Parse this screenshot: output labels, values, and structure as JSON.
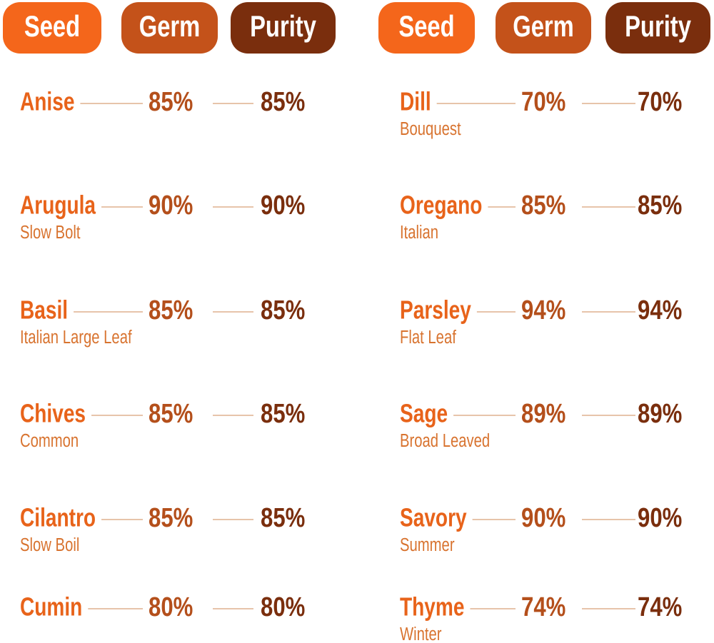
{
  "columns": [
    {
      "headers": [
        "Seed",
        "Germ",
        "Purity"
      ],
      "rows": [
        {
          "name": "Anise",
          "germ": "85%",
          "purity": "85%"
        },
        {
          "name": "Arugula",
          "variety": "Slow Bolt",
          "germ": "90%",
          "purity": "90%"
        },
        {
          "name": "Basil",
          "variety": "Italian Large Leaf",
          "germ": "85%",
          "purity": "85%"
        },
        {
          "name": "Chives",
          "variety": "Common",
          "germ": "85%",
          "purity": "85%"
        },
        {
          "name": "Cilantro",
          "variety": "Slow Boil",
          "germ": "85%",
          "purity": "85%"
        },
        {
          "name": "Cumin",
          "germ": "80%",
          "purity": "80%"
        }
      ]
    },
    {
      "headers": [
        "Seed",
        "Germ",
        "Purity"
      ],
      "rows": [
        {
          "name": "Dill",
          "variety": "Bouquest",
          "germ": "70%",
          "purity": "70%"
        },
        {
          "name": "Oregano",
          "variety": "Italian",
          "germ": "85%",
          "purity": "85%"
        },
        {
          "name": "Parsley",
          "variety": "Flat Leaf",
          "germ": "94%",
          "purity": "94%"
        },
        {
          "name": "Sage",
          "variety": "Broad Leaved",
          "germ": "89%",
          "purity": "89%"
        },
        {
          "name": "Savory",
          "variety": "Summer",
          "germ": "90%",
          "purity": "90%"
        },
        {
          "name": "Thyme",
          "variety": "Winter",
          "germ": "74%",
          "purity": "74%"
        }
      ]
    }
  ]
}
